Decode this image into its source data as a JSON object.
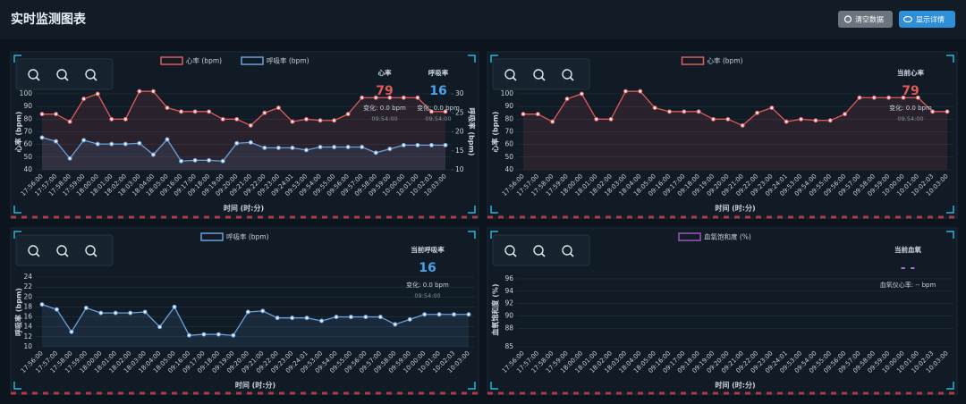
{
  "header": {
    "title": "实时监测图表",
    "buttons": [
      "清空数据",
      "显示详情"
    ]
  },
  "chart_data": [
    {
      "type": "line",
      "ylabel": "心率 (bpm)",
      "y2label": "呼吸率 (bpm)",
      "xlabel": "时间 (时:分)",
      "categories": [
        "17:56:00",
        "17:57:00",
        "17:58:00",
        "17:59:00",
        "18:00:00",
        "18:01:00",
        "18:02:00",
        "18:03:00",
        "18:04:00",
        "18:05:00",
        "09:16:00",
        "09:17:00",
        "09:18:00",
        "09:19:00",
        "09:20:00",
        "09:21:00",
        "09:22:00",
        "09:23:00",
        "09:24:01",
        "09:53:00",
        "09:54:00",
        "09:55:00",
        "09:56:00",
        "09:57:00",
        "09:58:00",
        "09:59:00",
        "10:00:00",
        "10:01:00",
        "10:02:03",
        "10:03:00"
      ],
      "series": [
        {
          "name": "心率 (bpm)",
          "color": "#e05a5a",
          "values": [
            84,
            84,
            78,
            96,
            100,
            80,
            80,
            102,
            102,
            89,
            86,
            86,
            86,
            80,
            80,
            75,
            85,
            89,
            78,
            80,
            79,
            79,
            84,
            97,
            97,
            97,
            97,
            97,
            86,
            86
          ]
        },
        {
          "name": "呼吸率 (bpm)",
          "color": "#6a9fd8",
          "axis": "y2",
          "values": [
            18.5,
            17.5,
            13,
            17.8,
            16.8,
            16.8,
            16.8,
            17,
            14,
            18,
            12.3,
            12.5,
            12.5,
            12.3,
            17,
            17.2,
            15.8,
            15.8,
            15.8,
            15.2,
            16,
            16,
            16,
            16,
            14.5,
            15.5,
            16.5,
            16.5,
            16.5,
            16.5
          ]
        }
      ],
      "ylim": [
        40,
        100
      ],
      "yticks": [
        40,
        50,
        60,
        70,
        80,
        90,
        100
      ],
      "y2lim": [
        10,
        30
      ],
      "y2ticks": [
        10,
        15,
        20,
        25,
        30
      ],
      "grid": true,
      "info": [
        {
          "label": "心率",
          "value": "79",
          "change": "变化: 0.0 bpm",
          "time": "09:54:00",
          "color": "#e05a5a"
        },
        {
          "label": "呼吸率",
          "value": "16",
          "change": "变化: 0.0 bpm",
          "time": "09:54:00",
          "color": "#4aa3e8"
        }
      ]
    },
    {
      "type": "line",
      "ylabel": "心率 (bpm)",
      "xlabel": "时间 (时:分)",
      "categories": [
        "17:56:00",
        "17:57:00",
        "17:58:00",
        "17:59:00",
        "18:00:00",
        "18:01:00",
        "18:02:00",
        "18:03:00",
        "18:04:00",
        "18:05:00",
        "09:16:00",
        "09:17:00",
        "09:18:00",
        "09:19:00",
        "09:20:00",
        "09:21:00",
        "09:22:00",
        "09:23:00",
        "09:24:01",
        "09:53:00",
        "09:54:00",
        "09:55:00",
        "09:56:00",
        "09:57:00",
        "09:58:00",
        "09:59:00",
        "10:00:00",
        "10:01:00",
        "10:02:03",
        "10:03:00"
      ],
      "series": [
        {
          "name": "心率 (bpm)",
          "color": "#e05a5a",
          "values": [
            84,
            84,
            78,
            96,
            100,
            80,
            80,
            102,
            102,
            89,
            86,
            86,
            86,
            80,
            80,
            75,
            85,
            89,
            78,
            80,
            79,
            79,
            84,
            97,
            97,
            97,
            97,
            97,
            86,
            86
          ]
        }
      ],
      "ylim": [
        40,
        100
      ],
      "yticks": [
        40,
        50,
        60,
        70,
        80,
        90,
        100
      ],
      "grid": true,
      "info": [
        {
          "label": "当前心率",
          "value": "79",
          "change": "变化: 0.0 bpm",
          "time": "09:54:00",
          "color": "#e05a5a"
        }
      ]
    },
    {
      "type": "line",
      "ylabel": "呼吸率 (bpm)",
      "xlabel": "时间 (时:分)",
      "categories": [
        "17:56:00",
        "17:57:00",
        "17:58:00",
        "17:59:00",
        "18:00:00",
        "18:01:00",
        "18:02:00",
        "18:03:00",
        "18:04:00",
        "18:05:00",
        "09:16:00",
        "09:17:00",
        "09:18:00",
        "09:19:00",
        "09:20:00",
        "09:21:00",
        "09:22:00",
        "09:23:00",
        "09:24:01",
        "09:53:00",
        "09:54:00",
        "09:55:00",
        "09:56:00",
        "09:57:00",
        "09:58:00",
        "09:59:00",
        "10:00:00",
        "10:01:00",
        "10:02:03",
        "10:03:00"
      ],
      "series": [
        {
          "name": "呼吸率 (bpm)",
          "color": "#6a9fd8",
          "values": [
            18.5,
            17.5,
            13,
            17.8,
            16.8,
            16.8,
            16.8,
            17,
            14,
            18,
            12.3,
            12.5,
            12.5,
            12.3,
            17,
            17.2,
            15.8,
            15.8,
            15.8,
            15.2,
            16,
            16,
            16,
            16,
            14.5,
            15.5,
            16.5,
            16.5,
            16.5,
            16.5
          ]
        }
      ],
      "ylim": [
        10,
        24
      ],
      "yticks": [
        10,
        12,
        14,
        16,
        18,
        20,
        22,
        24
      ],
      "grid": true,
      "info": [
        {
          "label": "当前呼吸率",
          "value": "16",
          "change": "变化: 0.0 bpm",
          "time": "09:54:00",
          "color": "#4aa3e8"
        }
      ]
    },
    {
      "type": "line",
      "ylabel": "血氧饱和度 (%)",
      "xlabel": "时间 (时:分)",
      "categories": [
        "17:56:00",
        "17:57:00",
        "17:58:00",
        "17:59:00",
        "18:00:00",
        "18:01:00",
        "18:02:00",
        "18:03:00",
        "18:04:00",
        "18:05:00",
        "09:16:00",
        "09:17:00",
        "09:18:00",
        "09:19:00",
        "09:20:00",
        "09:21:00",
        "09:22:00",
        "09:23:00",
        "09:24:01",
        "09:53:00",
        "09:54:00",
        "09:55:00",
        "09:56:00",
        "09:57:00",
        "09:58:00",
        "09:59:00",
        "10:00:00",
        "10:01:00",
        "10:02:03",
        "10:03:00"
      ],
      "series": [
        {
          "name": "血氧饱和度 (%)",
          "color": "#9b59b6",
          "values": [
            null,
            null,
            null,
            null,
            null,
            null,
            null,
            null,
            null,
            null,
            null,
            null,
            null,
            null,
            null,
            null,
            null,
            null,
            null,
            null,
            null,
            null,
            null,
            null,
            null,
            null,
            null,
            null,
            null,
            null
          ]
        }
      ],
      "ylim": [
        85,
        97
      ],
      "yticks": [
        85,
        88,
        90,
        92,
        94,
        96
      ],
      "grid": true,
      "info": [
        {
          "label": "当前血氧",
          "value": "- -",
          "change": "血氧仪心率: -- bpm",
          "color": "#b06ad0"
        }
      ]
    }
  ]
}
